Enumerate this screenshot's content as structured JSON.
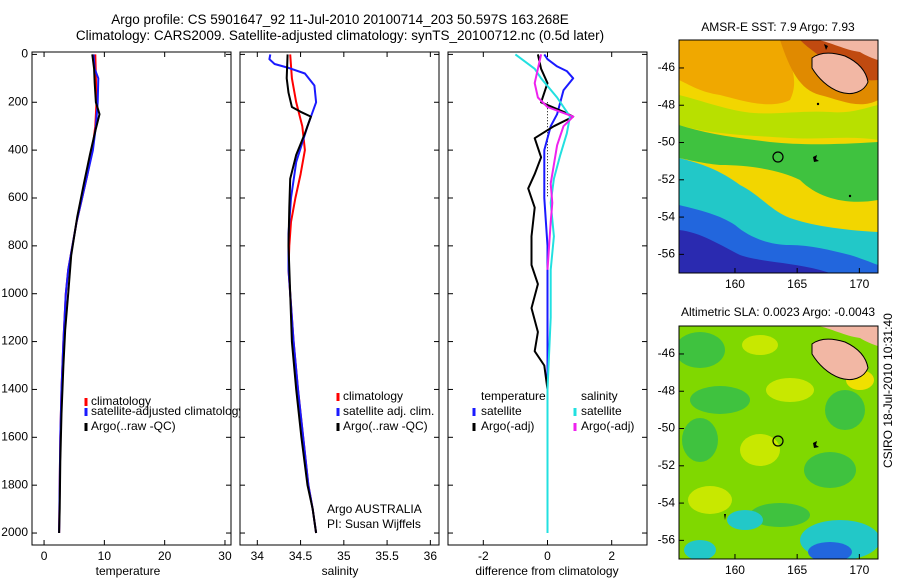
{
  "header": {
    "line1": "Argo profile: CS 5901647_92 11-Jul-2010 20100714_203 50.597S 163.268E",
    "line2": "Climatology: CARS2009. Satellite-adjusted climatology: synTS_20100712.nc (0.5d later)"
  },
  "side_stamp": "CSIRO 18-Jul-2010 10:31:40",
  "colors": {
    "red": "#ff0000",
    "blue": "#1a1aff",
    "black": "#000000",
    "cyan": "#22e0e0",
    "magenta": "#ee22ee",
    "land": "#f2b7a4"
  },
  "chart_data": [
    {
      "type": "line",
      "xlabel": "temperature",
      "ylabel": "",
      "xlim": [
        -2,
        31
      ],
      "ylim": [
        2050,
        -10
      ],
      "xticks": [
        "0",
        "10",
        "20",
        "30"
      ],
      "yticks": [
        "0",
        "200",
        "400",
        "600",
        "800",
        "1000",
        "1200",
        "1400",
        "1600",
        "1800",
        "2000"
      ],
      "legend": [
        "climatology",
        "satellite-adjusted climatology",
        "Argo(..raw -QC)"
      ],
      "series": [
        {
          "name": "climatology",
          "color": "red",
          "x": [
            8.5,
            8.6,
            8.7,
            8.5,
            8.0,
            7.2,
            6.3,
            5.4,
            4.7,
            4.0,
            3.6,
            3.2,
            2.9,
            2.7,
            2.6,
            2.5
          ],
          "y": [
            0,
            100,
            200,
            300,
            400,
            500,
            600,
            700,
            800,
            900,
            1000,
            1200,
            1400,
            1600,
            1800,
            2000
          ]
        },
        {
          "name": "satellite-adjusted climatology",
          "color": "blue",
          "x": [
            8.2,
            8.4,
            9.0,
            8.9,
            8.6,
            8.1,
            7.2,
            6.3,
            5.4,
            4.7,
            4.0,
            3.6,
            3.2,
            2.9,
            2.7,
            2.6,
            2.5
          ],
          "y": [
            0,
            60,
            100,
            200,
            300,
            400,
            500,
            600,
            700,
            800,
            900,
            1000,
            1200,
            1400,
            1600,
            1800,
            2000
          ]
        },
        {
          "name": "Argo(..raw -QC)",
          "color": "black",
          "x": [
            8.0,
            8.3,
            8.4,
            8.6,
            9.2,
            8.5,
            7.6,
            6.6,
            5.5,
            4.5,
            4.0,
            3.5,
            3.2,
            2.9,
            2.7,
            2.6,
            2.5
          ],
          "y": [
            0,
            60,
            120,
            200,
            250,
            320,
            420,
            540,
            680,
            840,
            1000,
            1150,
            1300,
            1500,
            1700,
            1900,
            2000
          ]
        }
      ]
    },
    {
      "type": "line",
      "xlabel": "salinity",
      "ylabel": "",
      "xlim": [
        33.8,
        36.1
      ],
      "ylim": [
        2050,
        -10
      ],
      "xticks": [
        "34",
        "34.5",
        "35",
        "35.5",
        "36"
      ],
      "legend": [
        "climatology",
        "satellite adj. clim.",
        "Argo(..raw -QC)"
      ],
      "annotation": [
        "Argo AUSTRALIA",
        "PI: Susan Wijffels"
      ],
      "series": [
        {
          "name": "climatology",
          "color": "red",
          "x": [
            34.38,
            34.4,
            34.45,
            34.52,
            34.55,
            34.5,
            34.44,
            34.39,
            34.37,
            34.36,
            34.38,
            34.42,
            34.47,
            34.53,
            34.59,
            34.64,
            34.68
          ],
          "y": [
            0,
            100,
            200,
            300,
            400,
            500,
            600,
            700,
            800,
            900,
            1000,
            1200,
            1400,
            1600,
            1800,
            1900,
            2000
          ]
        },
        {
          "name": "satellite adj. clim.",
          "color": "blue",
          "x": [
            34.15,
            34.14,
            34.2,
            34.35,
            34.55,
            34.66,
            34.68,
            34.58,
            34.45,
            34.39,
            34.36,
            34.36,
            34.38,
            34.42,
            34.47,
            34.53,
            34.59,
            34.64,
            34.68
          ],
          "y": [
            0,
            20,
            40,
            55,
            80,
            130,
            200,
            300,
            450,
            600,
            750,
            900,
            1000,
            1200,
            1400,
            1600,
            1800,
            1900,
            2000
          ]
        },
        {
          "name": "Argo(..raw -QC)",
          "color": "black",
          "x": [
            34.35,
            34.34,
            34.36,
            34.4,
            34.5,
            34.62,
            34.55,
            34.45,
            34.38,
            34.37,
            34.36,
            34.38,
            34.4,
            34.45,
            34.51,
            34.58,
            34.64,
            34.68
          ],
          "y": [
            0,
            100,
            160,
            220,
            240,
            260,
            330,
            420,
            520,
            640,
            800,
            1000,
            1200,
            1400,
            1600,
            1800,
            1900,
            2000
          ]
        }
      ]
    },
    {
      "type": "line",
      "xlabel": "difference from climatology",
      "ylabel": "",
      "xlim": [
        -3.1,
        3.1
      ],
      "ylim": [
        2050,
        -10
      ],
      "xticks": [
        "-2",
        "0",
        "2"
      ],
      "legend_headers": [
        "temperature",
        "salinity"
      ],
      "legend": [
        "satellite",
        "Argo(-adj)",
        "satellite",
        "Argo(-adj)"
      ],
      "series": [
        {
          "name": "temperature satellite",
          "color": "blue",
          "x": [
            -0.1,
            0.0,
            0.3,
            0.6,
            0.8,
            0.5,
            0.3,
            0.1,
            -0.1,
            -0.1,
            0.0,
            0.0,
            0.0,
            0.0
          ],
          "y": [
            0,
            20,
            50,
            70,
            100,
            150,
            250,
            300,
            400,
            600,
            800,
            1200,
            1600,
            2000
          ]
        },
        {
          "name": "temperature Argo(-adj)",
          "color": "black",
          "x": [
            -0.3,
            -0.2,
            0.0,
            -0.2,
            0.5,
            0.8,
            0.2,
            -0.4,
            -0.2,
            -0.4,
            -0.6,
            -0.4,
            -0.5,
            -0.5,
            -0.3,
            -0.5,
            -0.3,
            -0.4,
            -0.1,
            -0.05,
            0.0
          ],
          "y": [
            0,
            60,
            120,
            200,
            240,
            260,
            300,
            350,
            430,
            500,
            560,
            640,
            760,
            880,
            960,
            1060,
            1160,
            1240,
            1300,
            1350,
            1400
          ]
        },
        {
          "name": "salinity satellite",
          "color": "cyan",
          "x": [
            -1.0,
            -0.7,
            -0.4,
            -0.2,
            0.3,
            0.7,
            0.6,
            0.4,
            0.2,
            0.1,
            0.2,
            0.1,
            0.1,
            0.0,
            0.0,
            0.0,
            0.0
          ],
          "y": [
            0,
            30,
            60,
            100,
            180,
            260,
            330,
            420,
            520,
            620,
            760,
            900,
            1100,
            1400,
            1600,
            1800,
            2000
          ]
        },
        {
          "name": "salinity Argo(-adj)",
          "color": "magenta",
          "x": [
            -0.2,
            -0.3,
            -0.4,
            -0.3,
            0.0,
            0.4,
            0.8,
            0.5,
            0.3,
            0.2,
            0.1,
            0.15,
            0.1,
            0.05,
            0.0
          ],
          "y": [
            0,
            60,
            120,
            180,
            220,
            240,
            260,
            300,
            380,
            460,
            540,
            620,
            700,
            800,
            900
          ]
        }
      ]
    },
    {
      "type": "heatmap",
      "title": "AMSR-E SST: 7.9 Argo: 7.93",
      "xlim": [
        155.5,
        171.5
      ],
      "ylim": [
        -57,
        -44.5
      ],
      "xticks": [
        "160",
        "165",
        "170"
      ],
      "yticks": [
        "-46",
        "-48",
        "-50",
        "-52",
        "-54",
        "-56"
      ],
      "argo_position": [
        163.27,
        -50.6
      ]
    },
    {
      "type": "heatmap",
      "title": "Altimetric SLA: 0.0023 Argo: -0.0043",
      "xlim": [
        155.5,
        171.5
      ],
      "ylim": [
        -57,
        -44.5
      ],
      "xticks": [
        "160",
        "165",
        "170"
      ],
      "yticks": [
        "-46",
        "-48",
        "-50",
        "-52",
        "-54",
        "-56"
      ],
      "argo_position": [
        163.27,
        -50.6
      ]
    }
  ]
}
